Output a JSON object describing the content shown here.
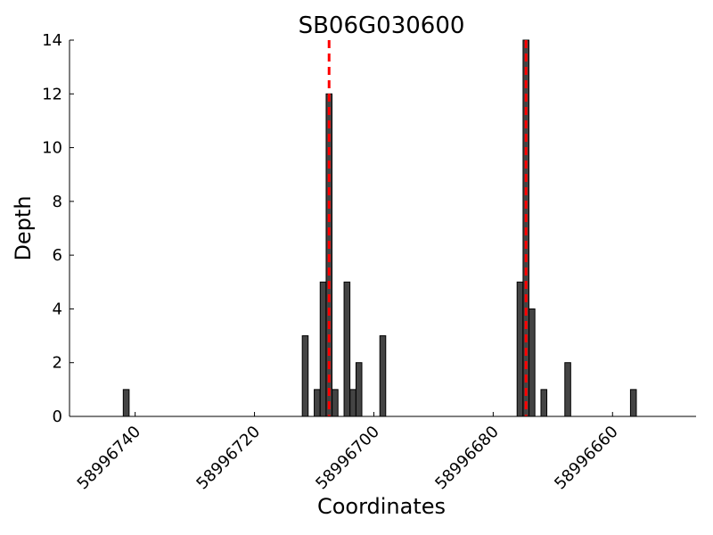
{
  "chart_data": {
    "type": "bar",
    "title": "SB06G030600",
    "xlabel": "Coordinates",
    "ylabel": "Depth",
    "x_reversed": true,
    "xlim": [
      58996751,
      58996646
    ],
    "ylim": [
      0,
      14
    ],
    "x_ticks": [
      58996740,
      58996720,
      58996700,
      58996680,
      58996660
    ],
    "x_tick_labels": [
      "58996740",
      "58996720",
      "58996700",
      "58996680",
      "58996660"
    ],
    "y_ticks": [
      0,
      2,
      4,
      6,
      8,
      10,
      12,
      14
    ],
    "y_tick_labels": [
      "0",
      "2",
      "4",
      "6",
      "8",
      "10",
      "12",
      "14"
    ],
    "bars": [
      {
        "x": 58996741.5,
        "value": 1
      },
      {
        "x": 58996711.5,
        "value": 3
      },
      {
        "x": 58996709.5,
        "value": 1
      },
      {
        "x": 58996708.5,
        "value": 5
      },
      {
        "x": 58996707.5,
        "value": 12
      },
      {
        "x": 58996706.5,
        "value": 1
      },
      {
        "x": 58996704.5,
        "value": 5
      },
      {
        "x": 58996703.5,
        "value": 1
      },
      {
        "x": 58996702.5,
        "value": 2
      },
      {
        "x": 58996698.5,
        "value": 3
      },
      {
        "x": 58996675.5,
        "value": 5
      },
      {
        "x": 58996674.5,
        "value": 14
      },
      {
        "x": 58996673.5,
        "value": 4
      },
      {
        "x": 58996671.5,
        "value": 1
      },
      {
        "x": 58996667.5,
        "value": 2
      },
      {
        "x": 58996656.5,
        "value": 1
      }
    ],
    "marker_lines": [
      58996707.5,
      58996674.5
    ],
    "bar_color": "#444444",
    "bar_edge_color": "#000000",
    "marker_color": "#ff0000",
    "grid": false
  }
}
